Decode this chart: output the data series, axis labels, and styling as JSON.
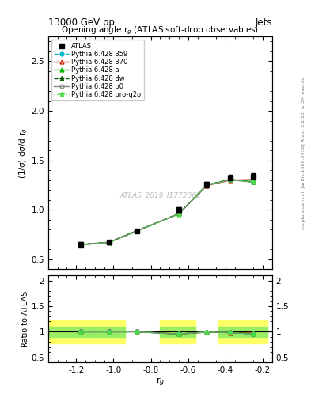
{
  "title_top": "13000 GeV pp",
  "title_right": "Jets",
  "plot_title": "Opening angle r$_g$ (ATLAS soft-drop observables)",
  "watermark": "ATLAS_2019_I1772062",
  "xlabel": "r$_g$",
  "ylabel_main": "(1/σ) dσ/d r$_g$",
  "ylabel_ratio": "Ratio to ATLAS",
  "right_label": "Rivet 3.1.10, ≥ 3M events",
  "right_label2": "mcplots.cern.ch [arXiv:1306.3436]",
  "x": [
    -1.175,
    -1.025,
    -0.875,
    -0.65,
    -0.5,
    -0.375,
    -0.25
  ],
  "atlas_y": [
    0.648,
    0.672,
    0.787,
    1.005,
    1.255,
    1.325,
    1.34
  ],
  "atlas_yerr": [
    0.025,
    0.018,
    0.018,
    0.025,
    0.03,
    0.03,
    0.03
  ],
  "py359_y": [
    0.648,
    0.672,
    0.787,
    0.96,
    1.25,
    1.305,
    1.28
  ],
  "py370_y": [
    0.648,
    0.672,
    0.787,
    0.96,
    1.245,
    1.3,
    1.305
  ],
  "pya_y": [
    0.648,
    0.672,
    0.787,
    0.96,
    1.25,
    1.305,
    1.285
  ],
  "pydw_y": [
    0.65,
    0.674,
    0.789,
    0.962,
    1.252,
    1.307,
    1.282
  ],
  "pyp0_y": [
    0.648,
    0.672,
    0.787,
    0.96,
    1.248,
    1.303,
    1.278
  ],
  "pyproq2o_y": [
    0.646,
    0.67,
    0.785,
    0.958,
    1.25,
    1.303,
    1.28
  ],
  "ratio_py359": [
    1.0,
    1.0,
    1.0,
    0.955,
    0.996,
    0.985,
    0.955
  ],
  "ratio_py370": [
    1.0,
    1.0,
    1.0,
    0.955,
    0.991,
    0.982,
    0.974
  ],
  "ratio_pya": [
    1.0,
    1.0,
    1.0,
    0.955,
    0.996,
    0.985,
    0.959
  ],
  "ratio_pydw": [
    1.003,
    1.003,
    1.002,
    0.957,
    0.997,
    0.986,
    0.957
  ],
  "ratio_pyp0": [
    1.0,
    1.0,
    1.0,
    0.955,
    0.994,
    0.983,
    0.954
  ],
  "ratio_pyproq2o": [
    0.997,
    0.997,
    0.997,
    0.953,
    0.996,
    0.984,
    0.955
  ],
  "ylim_main": [
    0.4,
    2.75
  ],
  "ylim_ratio": [
    0.4,
    2.1
  ],
  "xlim": [
    -1.35,
    -0.15
  ],
  "yticks_main": [
    0.5,
    1.0,
    1.5,
    2.0,
    2.5
  ],
  "yticks_ratio": [
    0.5,
    1.0,
    1.5,
    2.0
  ],
  "xticks": [
    -1.2,
    -1.0,
    -0.8,
    -0.6,
    -0.4,
    -0.2
  ],
  "color_atlas": "#000000",
  "color_359": "#00BBCC",
  "color_370": "#CC2200",
  "color_a": "#00BB00",
  "color_dw": "#005500",
  "color_p0": "#888888",
  "color_proq2o": "#44DD44",
  "band1_xlo": -1.35,
  "band1_xhi": -0.9375,
  "band2_xlo": -0.75,
  "band2_xhi": -0.5625,
  "band3_xlo": -0.4375,
  "band3_xhi": -0.175,
  "yellow_lo": 0.77,
  "yellow_hi": 1.22,
  "green_lo": 0.9,
  "green_hi": 1.1
}
